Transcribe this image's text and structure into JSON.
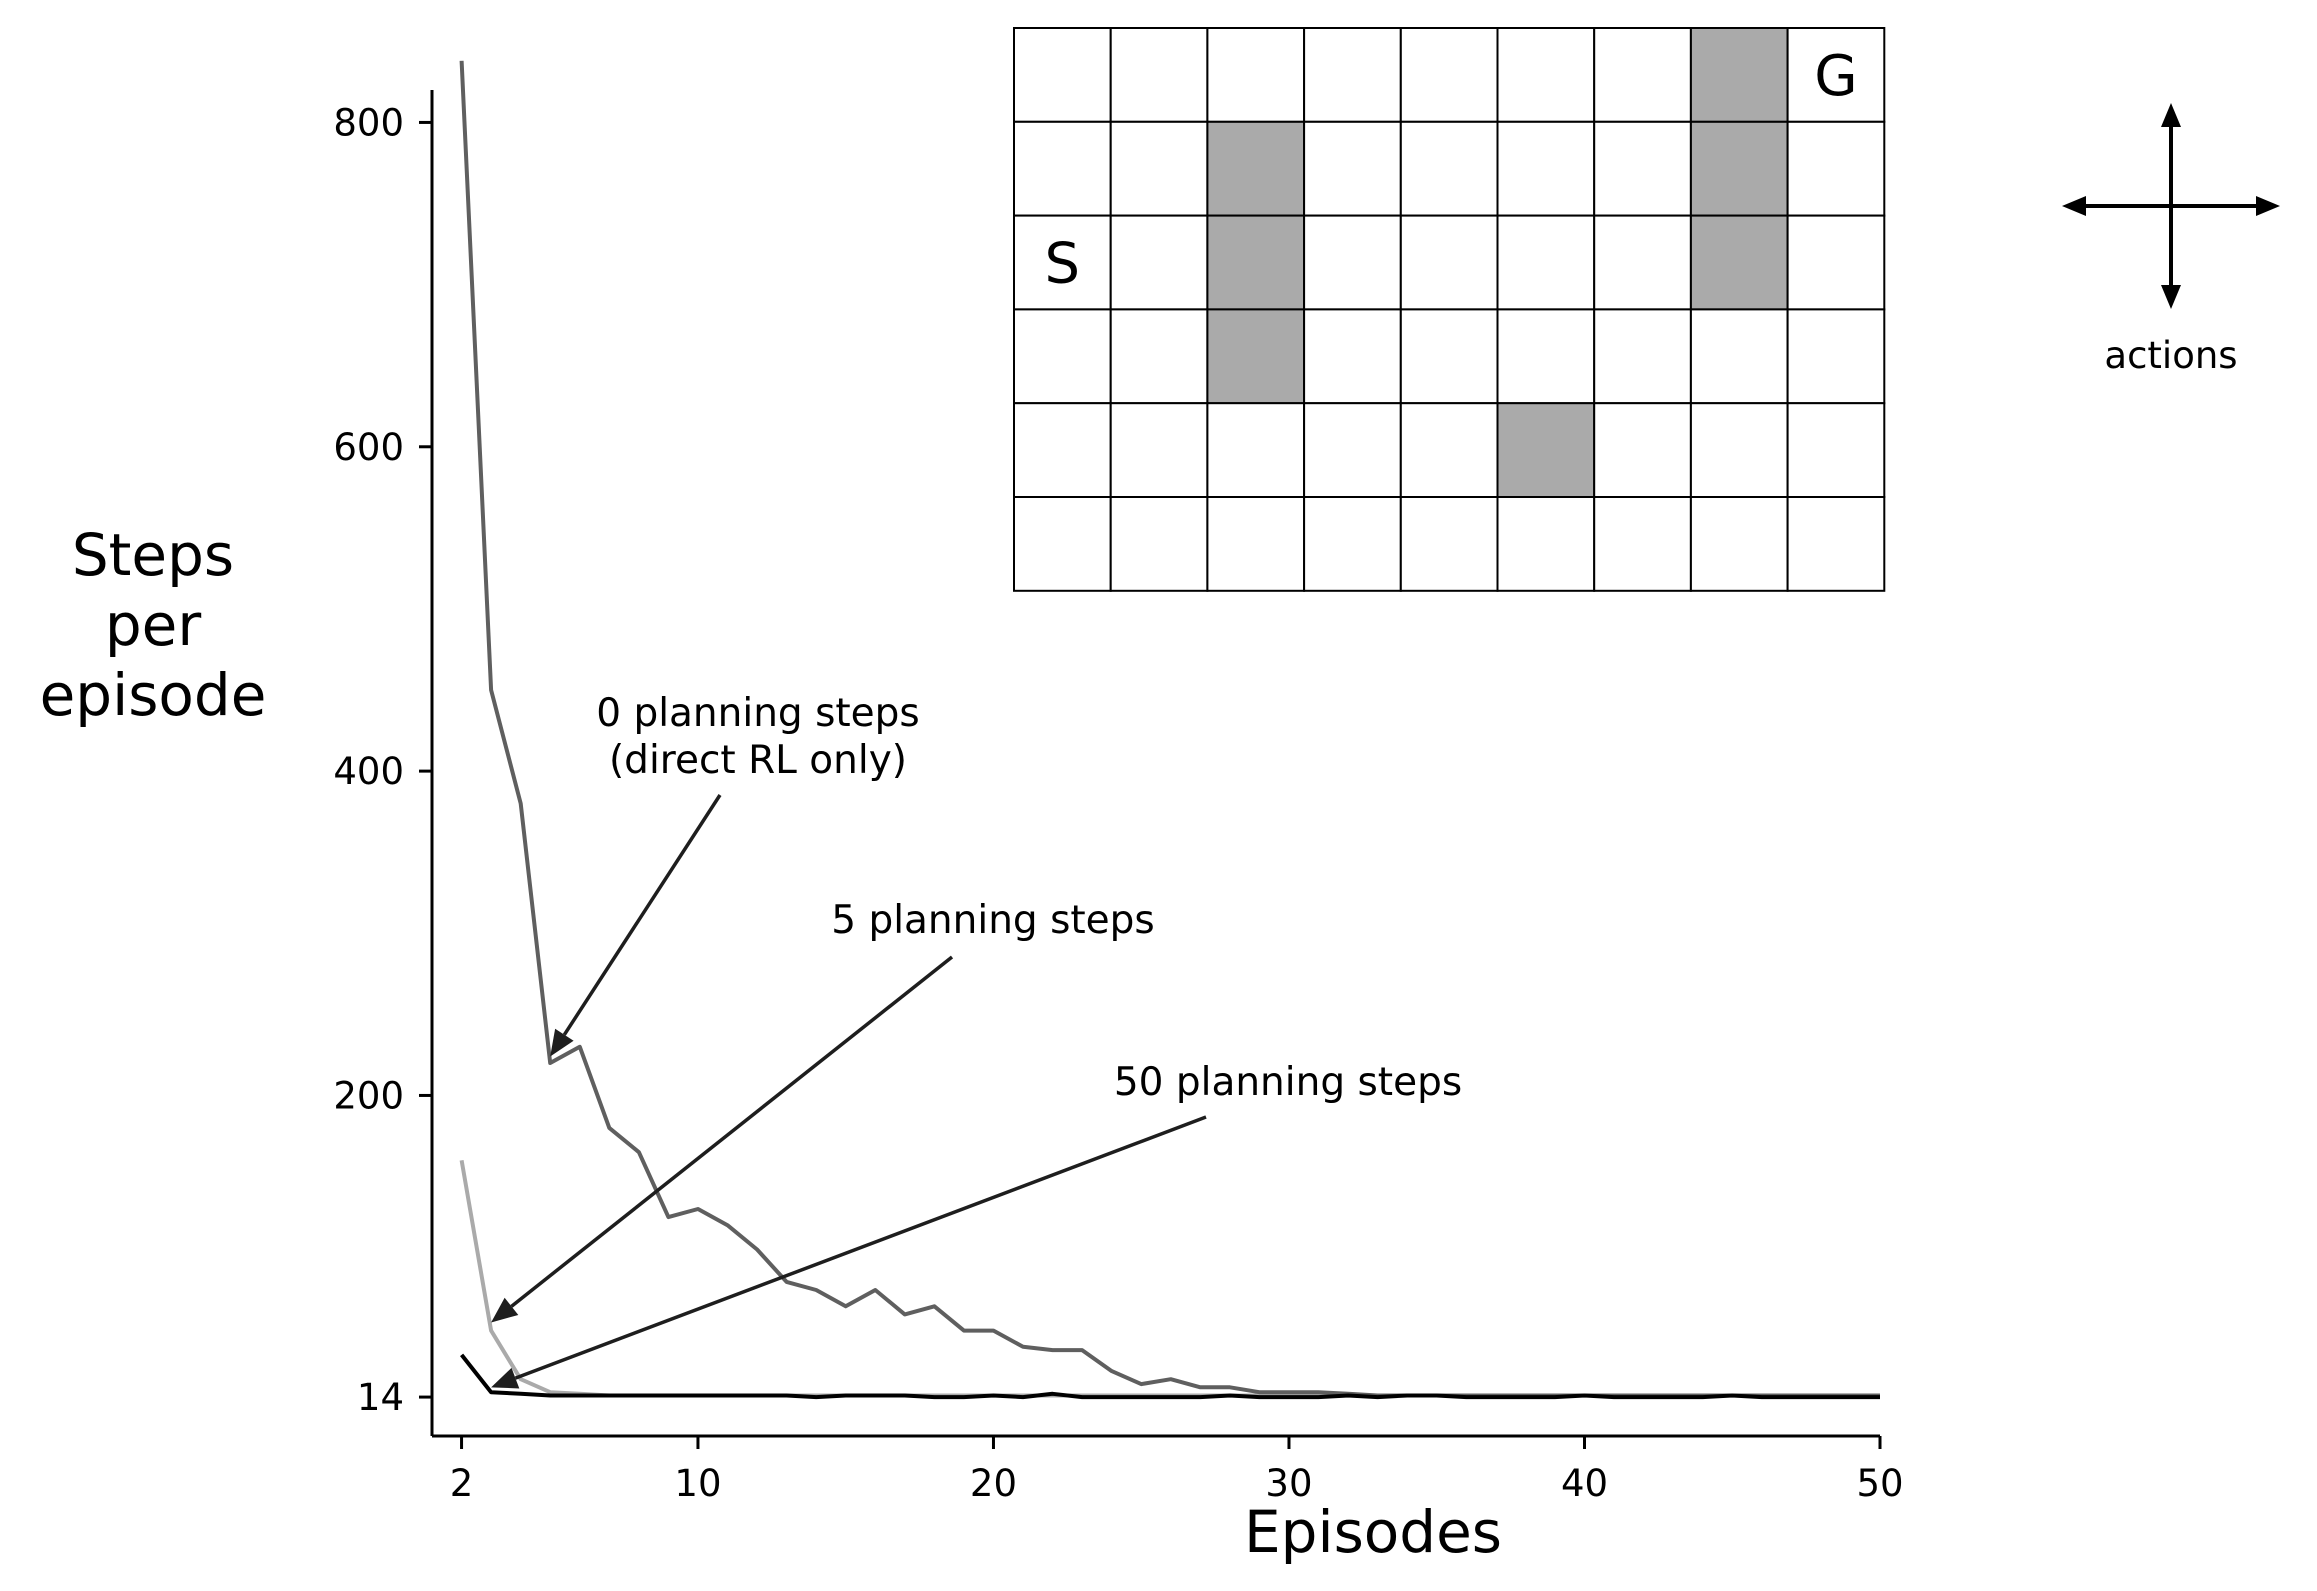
{
  "chart_data": {
    "type": "line",
    "xlabel": "Episodes",
    "ylabel": [
      "Steps",
      "per",
      "episode"
    ],
    "xlim": [
      1,
      50
    ],
    "ylim": [
      -10,
      820
    ],
    "xticks": [
      2,
      10,
      20,
      30,
      40,
      50
    ],
    "yticks": [
      14,
      200,
      400,
      600,
      800
    ],
    "grid": false,
    "x": [
      2,
      3,
      4,
      5,
      6,
      7,
      8,
      9,
      10,
      11,
      12,
      13,
      14,
      15,
      16,
      17,
      18,
      19,
      20,
      21,
      22,
      23,
      24,
      25,
      26,
      27,
      28,
      29,
      30,
      31,
      32,
      33,
      34,
      35,
      36,
      37,
      38,
      39,
      40,
      41,
      42,
      43,
      44,
      45,
      46,
      47,
      48,
      49,
      50
    ],
    "series": [
      {
        "name": "0 planning steps (direct RL only)",
        "color": "#5f5f5f",
        "values": [
          838,
          450,
          380,
          220,
          230,
          180,
          165,
          125,
          130,
          120,
          105,
          85,
          80,
          70,
          80,
          65,
          70,
          55,
          55,
          45,
          43,
          43,
          30,
          22,
          25,
          20,
          20,
          17,
          17,
          17,
          16,
          15,
          15,
          15,
          15,
          15,
          15,
          15,
          15,
          15,
          15,
          15,
          15,
          15,
          15,
          15,
          15,
          15,
          15
        ]
      },
      {
        "name": "5 planning steps",
        "color": "#aaaaaa",
        "values": [
          160,
          55,
          25,
          17,
          16,
          15,
          15,
          15,
          15,
          15,
          15,
          15,
          15,
          15,
          15,
          15,
          15,
          15,
          15,
          15,
          15,
          15,
          15,
          15,
          15,
          15,
          15,
          15,
          15,
          15,
          15,
          15,
          15,
          15,
          15,
          15,
          15,
          15,
          15,
          15,
          15,
          15,
          15,
          15,
          15,
          15,
          15,
          15,
          15
        ]
      },
      {
        "name": "50 planning steps",
        "color": "#000000",
        "values": [
          40,
          17,
          16,
          15,
          15,
          15,
          15,
          15,
          15,
          15,
          15,
          15,
          14,
          15,
          15,
          15,
          14,
          14,
          15,
          14,
          16,
          14,
          14,
          14,
          14,
          14,
          15,
          14,
          14,
          14,
          15,
          14,
          15,
          15,
          14,
          14,
          14,
          14,
          15,
          14,
          14,
          14,
          14,
          15,
          14,
          14,
          14,
          14,
          14
        ]
      }
    ],
    "annotations": [
      {
        "line1": "0 planning steps",
        "line2": "(direct RL only)",
        "target_x": 5,
        "target_y": 224
      },
      {
        "line1": "5 planning steps",
        "line2": "",
        "target_x": 3,
        "target_y": 60
      },
      {
        "line1": "50 planning steps",
        "line2": "",
        "target_x": 3,
        "target_y": 20
      }
    ]
  },
  "maze": {
    "rows": 6,
    "cols": 9,
    "fill_color": "#aaaaaa",
    "walls": [
      [
        0,
        7
      ],
      [
        1,
        2
      ],
      [
        1,
        7
      ],
      [
        2,
        2
      ],
      [
        2,
        7
      ],
      [
        3,
        2
      ],
      [
        4,
        5
      ]
    ],
    "start": {
      "row": 2,
      "col": 0,
      "label": "S"
    },
    "goal": {
      "row": 0,
      "col": 8,
      "label": "G"
    }
  },
  "actions_label": "actions"
}
